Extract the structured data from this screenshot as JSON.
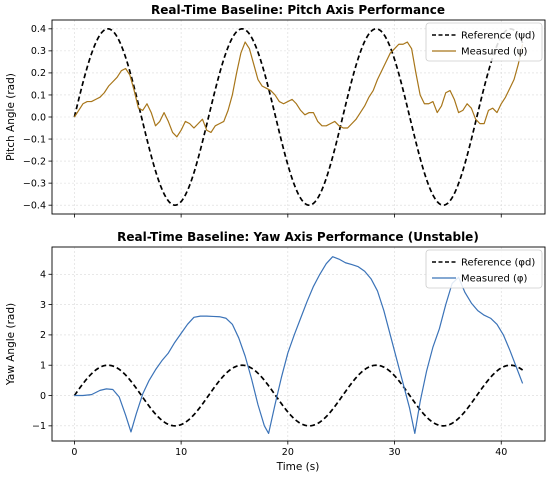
{
  "chart_data": [
    {
      "type": "line",
      "title": "Real-Time Baseline: Pitch Axis Performance",
      "xlabel": "",
      "ylabel": "Pitch Angle (rad)",
      "xlim": [
        -2.1,
        44.1
      ],
      "ylim": [
        -0.44,
        0.44
      ],
      "xticks": [
        0,
        10,
        20,
        30,
        40
      ],
      "xticklabels": [
        "",
        "",
        "",
        "",
        ""
      ],
      "yticks": [
        -0.4,
        -0.3,
        -0.2,
        -0.1,
        0.0,
        0.1,
        0.2,
        0.3,
        0.4
      ],
      "yticklabels": [
        "−0.4",
        "−0.3",
        "−0.2",
        "−0.1",
        "0.0",
        "0.1",
        "0.2",
        "0.3",
        "0.4"
      ],
      "grid": true,
      "legend": "top-right",
      "series": [
        {
          "name": "Reference (ψd)",
          "style": "dashed",
          "color": "#000000",
          "function": {
            "kind": "sine",
            "amplitude": 0.4,
            "period": 12.57,
            "x_start": 0,
            "x_end": 42
          }
        },
        {
          "name": "Measured (ψ)",
          "style": "solid",
          "color": "#a8761a",
          "x": [
            0,
            0.4,
            0.8,
            1.2,
            1.6,
            2.0,
            2.4,
            2.8,
            3.2,
            3.6,
            4.0,
            4.4,
            4.8,
            5.2,
            5.6,
            6.0,
            6.4,
            6.8,
            7.2,
            7.6,
            8.0,
            8.4,
            8.8,
            9.2,
            9.6,
            10.0,
            10.4,
            10.8,
            11.2,
            11.6,
            12.0,
            12.4,
            12.8,
            13.2,
            13.6,
            14.0,
            14.4,
            14.8,
            15.2,
            15.6,
            16.0,
            16.4,
            16.8,
            17.2,
            17.6,
            18.0,
            18.4,
            18.8,
            19.2,
            19.6,
            20.0,
            20.4,
            20.8,
            21.2,
            21.6,
            22.0,
            22.4,
            22.8,
            23.2,
            23.6,
            24.0,
            24.4,
            24.8,
            25.2,
            25.6,
            26.0,
            26.4,
            26.8,
            27.2,
            27.6,
            28.0,
            28.4,
            28.8,
            29.2,
            29.6,
            30.0,
            30.4,
            30.8,
            31.2,
            31.6,
            32.0,
            32.4,
            32.8,
            33.2,
            33.6,
            34.0,
            34.4,
            34.8,
            35.2,
            35.6,
            36.0,
            36.4,
            36.8,
            37.2,
            37.6,
            38.0,
            38.4,
            38.8,
            39.2,
            39.6,
            40.0,
            40.4,
            40.8,
            41.2,
            41.6,
            42.0
          ],
          "values": [
            0.0,
            0.03,
            0.06,
            0.07,
            0.07,
            0.08,
            0.09,
            0.11,
            0.14,
            0.16,
            0.18,
            0.21,
            0.22,
            0.19,
            0.12,
            0.04,
            0.03,
            0.06,
            0.02,
            -0.04,
            -0.02,
            0.02,
            -0.02,
            -0.07,
            -0.09,
            -0.06,
            -0.02,
            -0.03,
            -0.05,
            -0.03,
            -0.01,
            -0.06,
            -0.07,
            -0.04,
            -0.03,
            -0.02,
            0.03,
            0.1,
            0.2,
            0.29,
            0.34,
            0.31,
            0.24,
            0.17,
            0.14,
            0.13,
            0.12,
            0.1,
            0.07,
            0.06,
            0.07,
            0.08,
            0.06,
            0.03,
            0.01,
            0.02,
            0.02,
            -0.02,
            -0.04,
            -0.04,
            -0.03,
            -0.02,
            -0.04,
            -0.05,
            -0.05,
            -0.03,
            -0.01,
            0.02,
            0.05,
            0.09,
            0.12,
            0.17,
            0.21,
            0.25,
            0.29,
            0.31,
            0.33,
            0.33,
            0.34,
            0.31,
            0.2,
            0.1,
            0.06,
            0.06,
            0.07,
            0.02,
            0.05,
            0.11,
            0.12,
            0.08,
            0.02,
            0.03,
            0.06,
            0.04,
            -0.01,
            -0.03,
            -0.03,
            0.03,
            0.04,
            0.02,
            0.06,
            0.09,
            0.13,
            0.17,
            0.24,
            0.33
          ]
        }
      ]
    },
    {
      "type": "line",
      "title": "Real-Time Baseline: Yaw Axis Performance (Unstable)",
      "xlabel": "Time (s)",
      "ylabel": "Yaw Angle (rad)",
      "xlim": [
        -2.1,
        44.1
      ],
      "ylim": [
        -1.5,
        4.9
      ],
      "xticks": [
        0,
        10,
        20,
        30,
        40
      ],
      "xticklabels": [
        "0",
        "10",
        "20",
        "30",
        "40"
      ],
      "yticks": [
        -1,
        0,
        1,
        2,
        3,
        4
      ],
      "yticklabels": [
        "−1",
        "0",
        "1",
        "2",
        "3",
        "4"
      ],
      "grid": true,
      "legend": "top-right",
      "series": [
        {
          "name": "Reference (φd)",
          "style": "dashed",
          "color": "#000000",
          "function": {
            "kind": "sine",
            "amplitude": 1.0,
            "period": 12.57,
            "x_start": 0,
            "x_end": 42
          }
        },
        {
          "name": "Measured (φ)",
          "style": "solid",
          "color": "#3b73b8",
          "x": [
            0,
            0.8,
            1.6,
            2.4,
            3.0,
            3.6,
            4.2,
            4.8,
            5.3,
            5.8,
            6.4,
            7.0,
            7.6,
            8.2,
            8.8,
            9.4,
            10.0,
            10.6,
            11.2,
            11.8,
            12.4,
            13.0,
            13.6,
            14.2,
            14.8,
            15.4,
            16.0,
            16.6,
            17.2,
            17.8,
            18.2,
            18.8,
            19.4,
            20.0,
            20.6,
            21.2,
            21.8,
            22.4,
            23.0,
            23.6,
            24.2,
            24.8,
            25.4,
            26.0,
            26.6,
            27.2,
            27.8,
            28.4,
            29.0,
            29.6,
            30.2,
            30.8,
            31.4,
            31.9,
            32.4,
            33.0,
            33.6,
            34.2,
            34.8,
            35.4,
            36.0,
            36.6,
            37.2,
            37.8,
            38.4,
            39.0,
            39.6,
            40.2,
            40.8,
            41.4,
            42.0
          ],
          "values": [
            0.0,
            0.0,
            0.03,
            0.17,
            0.22,
            0.2,
            -0.05,
            -0.65,
            -1.2,
            -0.6,
            0.05,
            0.5,
            0.85,
            1.15,
            1.4,
            1.75,
            2.05,
            2.35,
            2.58,
            2.62,
            2.62,
            2.61,
            2.6,
            2.55,
            2.35,
            1.9,
            1.3,
            0.55,
            -0.3,
            -1.0,
            -1.25,
            -0.3,
            0.6,
            1.4,
            2.0,
            2.55,
            3.1,
            3.6,
            4.0,
            4.35,
            4.58,
            4.5,
            4.38,
            4.32,
            4.25,
            4.1,
            3.85,
            3.45,
            2.8,
            2.0,
            1.2,
            0.4,
            -0.4,
            -1.25,
            -0.2,
            0.8,
            1.6,
            2.2,
            3.0,
            3.7,
            3.9,
            3.4,
            3.05,
            2.8,
            2.65,
            2.55,
            2.35,
            2.0,
            1.5,
            0.95,
            0.4
          ]
        }
      ]
    }
  ]
}
